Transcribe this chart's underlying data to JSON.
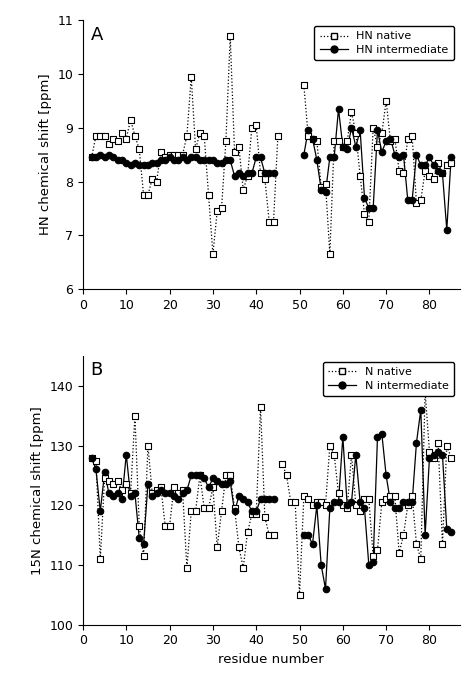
{
  "panel_A": {
    "native_seg1_x": [
      2,
      3,
      4,
      5,
      6,
      7,
      8,
      9,
      10,
      11,
      12,
      13,
      14,
      15,
      16,
      17,
      18,
      19,
      20,
      21,
      22,
      23,
      24,
      25,
      26,
      27,
      28,
      29,
      30,
      31,
      32,
      33,
      34,
      35,
      36,
      37,
      38,
      39,
      40,
      41,
      42,
      43,
      44,
      45
    ],
    "native_seg1_y": [
      8.45,
      8.85,
      8.85,
      8.85,
      8.7,
      8.8,
      8.75,
      8.9,
      8.8,
      9.15,
      8.85,
      8.6,
      7.75,
      7.75,
      8.05,
      8.0,
      8.55,
      8.45,
      8.5,
      8.5,
      8.5,
      8.5,
      8.85,
      9.95,
      8.6,
      8.9,
      8.85,
      7.75,
      6.65,
      7.45,
      7.5,
      8.75,
      10.7,
      8.55,
      8.65,
      7.85,
      8.1,
      9.0,
      9.05,
      8.15,
      8.05,
      7.25,
      7.25,
      8.85
    ],
    "native_seg2_x": [
      51,
      52,
      53,
      54,
      55,
      56,
      57,
      58,
      59,
      60,
      61,
      62,
      63,
      64,
      65,
      66,
      67,
      68,
      69,
      70,
      71,
      72,
      73,
      74,
      75,
      76,
      77,
      78,
      79,
      80,
      81,
      82,
      83,
      84,
      85
    ],
    "native_seg2_y": [
      9.8,
      8.85,
      8.8,
      8.75,
      7.9,
      7.95,
      6.65,
      8.75,
      8.75,
      8.65,
      8.75,
      9.3,
      8.9,
      8.1,
      7.4,
      7.25,
      9.0,
      8.65,
      8.9,
      9.5,
      8.75,
      8.8,
      8.2,
      8.15,
      8.8,
      8.85,
      7.6,
      7.65,
      8.2,
      8.1,
      8.05,
      8.35,
      8.15,
      8.3,
      8.35
    ],
    "inter_seg1_x": [
      2,
      3,
      4,
      5,
      6,
      7,
      8,
      9,
      10,
      11,
      12,
      13,
      14,
      15,
      16,
      17,
      18,
      19,
      20,
      21,
      22,
      23,
      24,
      25,
      26,
      27,
      28,
      29,
      30,
      31,
      32,
      33,
      34,
      35,
      36,
      37,
      38,
      39,
      40,
      41,
      42,
      43,
      44
    ],
    "inter_seg1_y": [
      8.45,
      8.45,
      8.5,
      8.45,
      8.5,
      8.45,
      8.4,
      8.4,
      8.35,
      8.3,
      8.35,
      8.3,
      8.3,
      8.3,
      8.35,
      8.35,
      8.4,
      8.4,
      8.45,
      8.4,
      8.4,
      8.45,
      8.4,
      8.45,
      8.45,
      8.4,
      8.4,
      8.4,
      8.4,
      8.35,
      8.35,
      8.4,
      8.4,
      8.1,
      8.15,
      8.1,
      8.15,
      8.15,
      8.45,
      8.45,
      8.15,
      8.15,
      8.15
    ],
    "inter_seg2_x": [
      51,
      52,
      53,
      54,
      55,
      56,
      57,
      58,
      59,
      60,
      61,
      62,
      63,
      64,
      65,
      66,
      67,
      68,
      69,
      70,
      71,
      72,
      73,
      74,
      75,
      76,
      77,
      78,
      79,
      80,
      81,
      82,
      83,
      84,
      85
    ],
    "inter_seg2_y": [
      8.5,
      8.95,
      8.8,
      8.4,
      7.85,
      7.8,
      8.45,
      8.45,
      9.35,
      8.65,
      8.6,
      9.0,
      8.65,
      8.95,
      7.7,
      7.5,
      7.5,
      8.95,
      8.55,
      8.75,
      8.8,
      8.5,
      8.45,
      8.5,
      7.65,
      7.65,
      8.5,
      8.3,
      8.3,
      8.45,
      8.3,
      8.2,
      8.15,
      7.1,
      8.45
    ]
  },
  "panel_B": {
    "native_seg1_x": [
      2,
      3,
      4,
      5,
      6,
      7,
      8,
      9,
      10,
      11,
      12,
      13,
      14,
      15,
      16,
      17,
      18,
      19,
      20,
      21,
      22,
      23,
      24,
      25,
      26,
      27,
      28,
      29,
      30,
      31,
      32,
      33,
      34,
      35,
      36,
      37,
      38,
      39,
      40,
      41,
      42,
      43,
      44
    ],
    "native_seg1_y": [
      128.0,
      127.5,
      111.0,
      124.5,
      124.0,
      123.5,
      124.0,
      122.5,
      123.5,
      122.0,
      135.0,
      116.5,
      111.5,
      130.0,
      122.0,
      122.5,
      123.0,
      116.5,
      116.5,
      123.0,
      122.0,
      122.5,
      109.5,
      119.0,
      119.0,
      125.0,
      119.5,
      119.5,
      123.0,
      113.0,
      119.0,
      125.0,
      125.0,
      119.5,
      113.0,
      109.5,
      115.5,
      118.5,
      118.5,
      136.5,
      118.0,
      115.0,
      115.0
    ],
    "native_seg2_x": [
      46,
      47,
      48,
      49,
      50,
      51,
      52,
      53,
      54,
      55,
      56,
      57,
      58,
      59,
      60,
      61,
      62,
      63,
      64,
      65,
      66,
      67,
      68,
      69,
      70,
      71,
      72,
      73,
      74,
      75,
      76,
      77,
      78,
      79,
      80,
      81,
      82,
      83,
      84,
      85
    ],
    "native_seg2_y": [
      127.0,
      125.0,
      120.5,
      120.5,
      105.0,
      121.5,
      121.0,
      120.0,
      120.5,
      120.5,
      120.0,
      130.0,
      128.5,
      122.0,
      120.0,
      119.5,
      128.5,
      120.0,
      119.0,
      121.0,
      121.0,
      111.5,
      112.5,
      120.5,
      121.0,
      121.5,
      121.5,
      112.0,
      115.0,
      120.0,
      121.5,
      113.5,
      111.0,
      139.0,
      129.0,
      128.0,
      130.5,
      113.5,
      130.0,
      128.0
    ],
    "inter_seg1_x": [
      2,
      3,
      4,
      5,
      6,
      7,
      8,
      9,
      10,
      11,
      12,
      13,
      14,
      15,
      16,
      17,
      18,
      19,
      20,
      21,
      22,
      23,
      24,
      25,
      26,
      27,
      28,
      29,
      30,
      31,
      32,
      33,
      34,
      35,
      36,
      37,
      38,
      39,
      40,
      41,
      42,
      43,
      44
    ],
    "inter_seg1_y": [
      128.0,
      126.0,
      119.0,
      125.5,
      122.0,
      121.5,
      122.0,
      121.0,
      128.5,
      121.5,
      122.0,
      114.5,
      113.5,
      123.5,
      121.5,
      122.0,
      122.5,
      122.0,
      122.0,
      121.5,
      121.0,
      122.0,
      122.5,
      125.0,
      125.0,
      125.0,
      124.5,
      123.0,
      124.5,
      124.0,
      123.5,
      123.5,
      124.0,
      119.0,
      121.5,
      121.0,
      120.5,
      119.0,
      119.0,
      121.0,
      121.0,
      121.0,
      121.0
    ],
    "inter_seg2_x": [
      51,
      52,
      53,
      54,
      55,
      56,
      57,
      58,
      59,
      60,
      61,
      62,
      63,
      64,
      65,
      66,
      67,
      68,
      69,
      70,
      71,
      72,
      73,
      74,
      75,
      76,
      77,
      78,
      79,
      80,
      81,
      82,
      83,
      84,
      85
    ],
    "inter_seg2_y": [
      115.0,
      115.0,
      113.5,
      120.0,
      110.0,
      106.0,
      119.5,
      120.5,
      120.5,
      131.5,
      120.0,
      120.5,
      128.5,
      120.5,
      119.5,
      110.0,
      110.5,
      131.5,
      132.0,
      125.0,
      120.5,
      119.5,
      119.5,
      120.5,
      120.5,
      120.5,
      130.5,
      136.0,
      115.0,
      128.0,
      128.5,
      129.0,
      128.5,
      116.0,
      115.5
    ]
  },
  "ylabel_A": "HN chemical shift [ppm]",
  "ylabel_B": "15N chemical shift [ppm]",
  "xlabel": "residue number",
  "ylim_A": [
    6,
    11
  ],
  "ylim_B": [
    100,
    145
  ],
  "xlim": [
    0,
    87
  ],
  "yticks_A": [
    6,
    7,
    8,
    9,
    10,
    11
  ],
  "yticks_B": [
    100,
    110,
    120,
    130,
    140
  ],
  "xticks": [
    0,
    10,
    20,
    30,
    40,
    50,
    60,
    70,
    80
  ]
}
